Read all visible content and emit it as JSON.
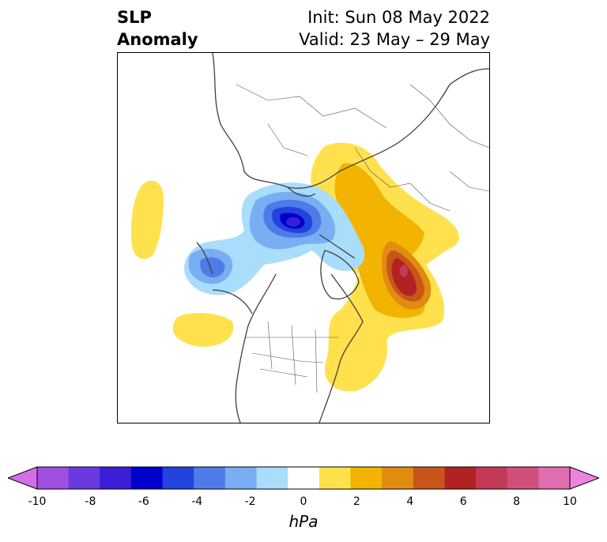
{
  "header": {
    "title_line1": "SLP",
    "title_line2": "Anomaly",
    "init_text": "Init: Sun 08 May 2022",
    "valid_text": "Valid: 23 May – 29 May"
  },
  "colorbar": {
    "unit": "hPa",
    "tick_labels": [
      "-10",
      "-8",
      "-6",
      "-4",
      "-2",
      "0",
      "2",
      "4",
      "6",
      "8",
      "10"
    ],
    "colors": [
      "#d36ee8",
      "#a050e0",
      "#6a3ae0",
      "#3a1fd6",
      "#0000cc",
      "#2244dd",
      "#4f7ae8",
      "#79aef2",
      "#aadcfb",
      "#ffffff",
      "#ffe14d",
      "#f2b400",
      "#e08c10",
      "#c8561a",
      "#b22222",
      "#c23a55",
      "#d0507a",
      "#e06fb0",
      "#ee82dc"
    ]
  },
  "map": {
    "projection": "north-polar-stereographic",
    "features": [
      "coastlines",
      "country-borders",
      "us-state-borders"
    ]
  }
}
